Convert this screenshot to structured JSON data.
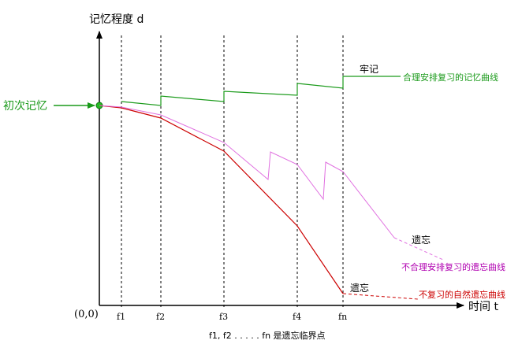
{
  "axes": {
    "y_label": "记忆程度 d",
    "x_label": "时间 t",
    "origin_label": "(0,0)"
  },
  "ticks": [
    "f1",
    "f2",
    "f3",
    "f4",
    "fn"
  ],
  "footnote": "f1, f2 . . . . . fn 是遗忘临界点",
  "labels": {
    "first_memory": "初次记忆",
    "firm_memory": "牢记",
    "green_curve": "合理安排复习的记忆曲线",
    "pink_forget": "遗忘",
    "pink_curve": "不合理安排复习的遗忘曲线",
    "red_forget": "遗忘",
    "red_curve": "不复习的自然遗忘曲线"
  },
  "colors": {
    "green": "#1a9a1a",
    "pink": "#e070e0",
    "red": "#cc0000",
    "purple_text": "#b000b0",
    "axis": "#000000"
  }
}
